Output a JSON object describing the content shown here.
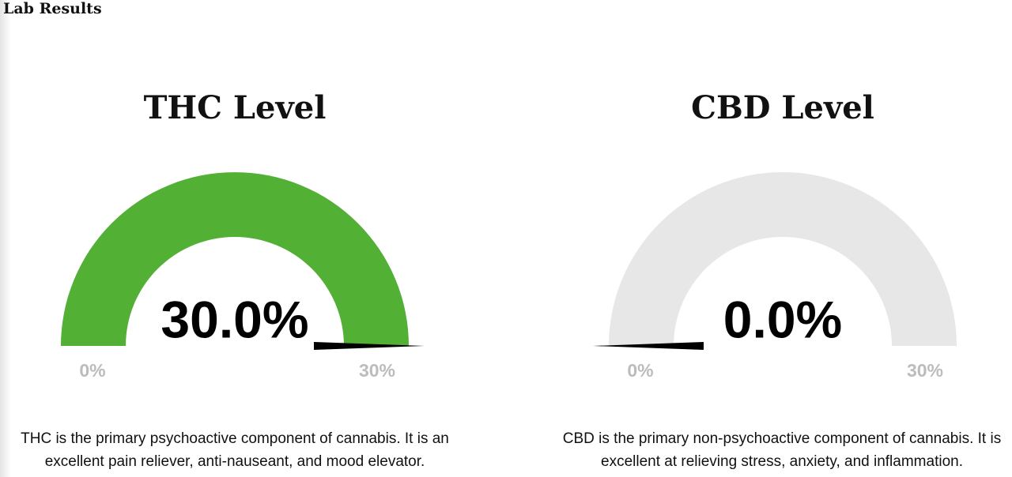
{
  "header": {
    "title": "Lab Results"
  },
  "chart_data": [
    {
      "type": "gauge",
      "title": "THC Level",
      "values": [
        30
      ],
      "value_labels": [
        "30.0%"
      ],
      "ylim": [
        0,
        30
      ],
      "yticks": [
        {
          "value": 0,
          "label": "0%"
        },
        {
          "value": 30,
          "label": "30%"
        }
      ],
      "color": "#52b035",
      "track_color": "#e8e7e8",
      "description": "THC is the primary psychoactive component of cannabis. It is an excellent pain reliever, anti-nauseant, and mood elevator."
    },
    {
      "type": "gauge",
      "title": "CBD Level",
      "values": [
        0
      ],
      "value_labels": [
        "0.0%"
      ],
      "ylim": [
        0,
        30
      ],
      "yticks": [
        {
          "value": 0,
          "label": "0%"
        },
        {
          "value": 30,
          "label": "30%"
        }
      ],
      "color": "#52b035",
      "track_color": "#e8e7e8",
      "description": "CBD is the primary non-psychoactive component of cannabis. It is excellent at relieving stress, anxiety, and inflammation."
    }
  ]
}
